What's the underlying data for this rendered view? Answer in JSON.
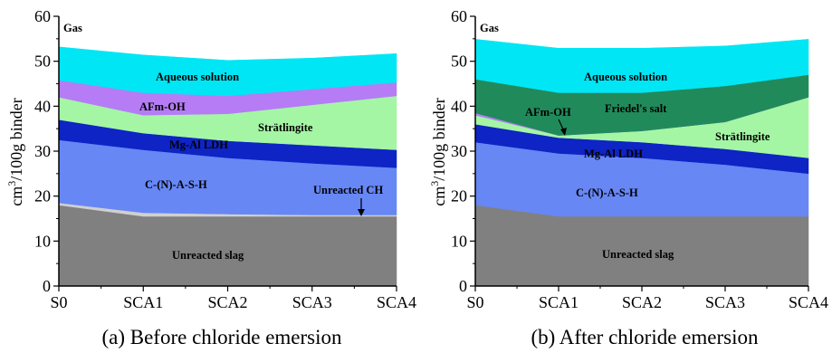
{
  "chart_data": [
    {
      "type": "area",
      "stacked": true,
      "caption": "(a) Before chloride emersion",
      "ylabel": "cm3/100g binder",
      "ylabel_main": "cm",
      "ylabel_sup": "3",
      "ylabel_rest": "/100g binder",
      "x": [
        "S0",
        "SCA1",
        "SCA2",
        "SCA3",
        "SCA4"
      ],
      "ylim": [
        0,
        60
      ],
      "yticks": [
        0,
        10,
        20,
        30,
        40,
        50,
        60
      ],
      "series": [
        {
          "name": "Unreacted slag",
          "color": "#808080",
          "values": [
            18.0,
            15.5,
            15.5,
            15.5,
            15.5
          ]
        },
        {
          "name": "Unreacted CH",
          "color": "#d0d0d0",
          "values": [
            0.5,
            0.8,
            0.5,
            0.3,
            0.3
          ]
        },
        {
          "name": "C-(N)-A-S-H",
          "color": "#6787f5",
          "values": [
            14.0,
            14.0,
            12.5,
            11.5,
            10.5
          ]
        },
        {
          "name": "Mg-Al LDH",
          "color": "#0e24c4",
          "values": [
            4.5,
            3.7,
            3.8,
            4.0,
            4.0
          ]
        },
        {
          "name": "Strätlingite",
          "color": "#a4f6a4",
          "values": [
            5.0,
            4.0,
            6.0,
            9.0,
            12.0
          ]
        },
        {
          "name": "AFm-OH",
          "color": "#b57cf5",
          "values": [
            3.8,
            5.0,
            4.0,
            3.5,
            3.0
          ]
        },
        {
          "name": "Aqueous solution",
          "color": "#00e6f5",
          "values": [
            7.5,
            8.5,
            8.0,
            7.0,
            6.5
          ]
        },
        {
          "name": "Gas",
          "color": "#ffffff",
          "values": [
            6.7,
            8.5,
            9.7,
            9.2,
            8.2
          ]
        }
      ],
      "annotations": [
        "Gas",
        "Aqueous solution",
        "AFm-OH",
        "Strätlingite",
        "Mg-Al LDH",
        "C-(N)-A-S-H",
        "Unreacted CH",
        "Unreacted slag"
      ]
    },
    {
      "type": "area",
      "stacked": true,
      "caption": "(b) After chloride emersion",
      "ylabel": "cm3/100g binder",
      "ylabel_main": "cm",
      "ylabel_sup": "3",
      "ylabel_rest": "/100g binder",
      "x": [
        "S0",
        "SCA1",
        "SCA2",
        "SCA3",
        "SCA4"
      ],
      "ylim": [
        0,
        60
      ],
      "yticks": [
        0,
        10,
        20,
        30,
        40,
        50,
        60
      ],
      "series": [
        {
          "name": "Unreacted slag",
          "color": "#808080",
          "values": [
            18.0,
            15.5,
            15.5,
            15.5,
            15.5
          ]
        },
        {
          "name": "C-(N)-A-S-H",
          "color": "#6787f5",
          "values": [
            14.0,
            14.0,
            13.0,
            11.5,
            9.5
          ]
        },
        {
          "name": "Mg-Al LDH",
          "color": "#0e24c4",
          "values": [
            4.0,
            3.5,
            3.5,
            3.5,
            3.5
          ]
        },
        {
          "name": "Strätlingite",
          "color": "#a4f6a4",
          "values": [
            2.0,
            0.5,
            2.5,
            6.0,
            13.5
          ]
        },
        {
          "name": "AFm-OH",
          "color": "#b57cf5",
          "values": [
            0.5,
            0.0,
            0.0,
            0.0,
            0.0
          ]
        },
        {
          "name": "Friedel's salt",
          "color": "#218a5b",
          "values": [
            7.5,
            9.5,
            8.5,
            8.0,
            5.0
          ]
        },
        {
          "name": "Aqueous solution",
          "color": "#00e6f5",
          "values": [
            9.0,
            10.0,
            10.0,
            9.0,
            8.0
          ]
        },
        {
          "name": "Gas",
          "color": "#ffffff",
          "values": [
            5.0,
            7.0,
            7.0,
            6.5,
            5.0
          ]
        }
      ],
      "annotations": [
        "Gas",
        "Aqueous solution",
        "Friedel's salt",
        "AFm-OH",
        "Strätlingite",
        "Mg-Al LDH",
        "C-(N)-A-S-H",
        "Unreacted slag"
      ]
    }
  ]
}
